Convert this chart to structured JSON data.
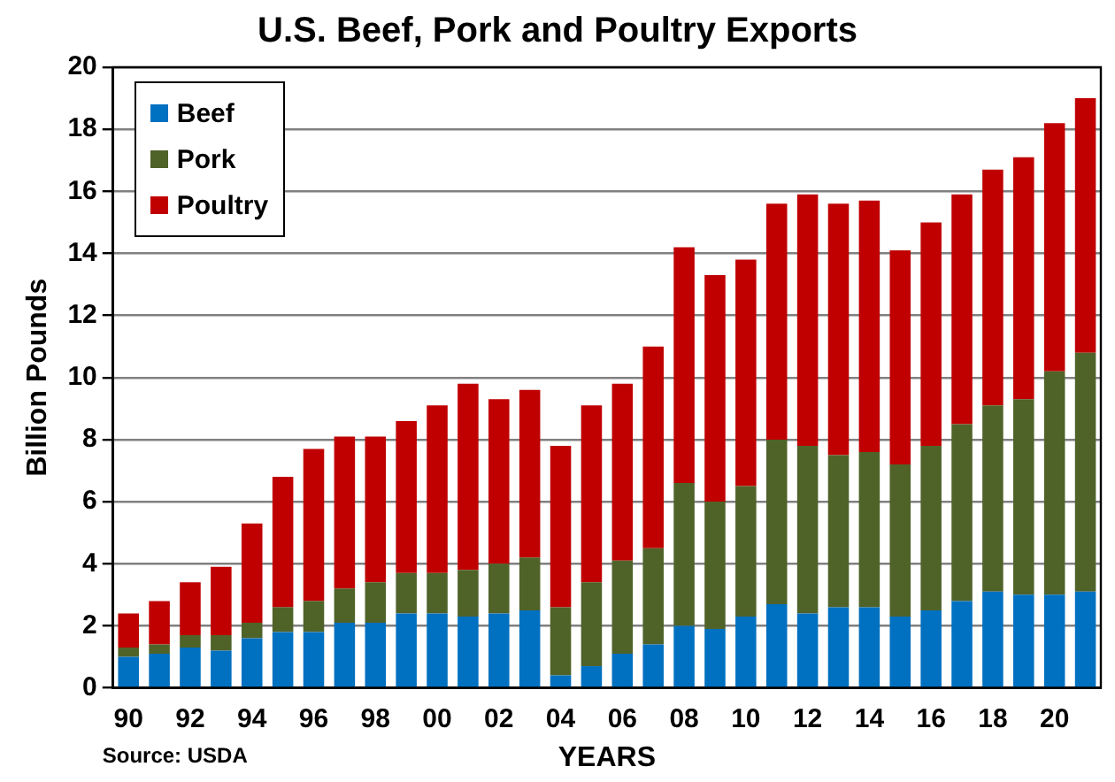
{
  "chart_data": {
    "type": "bar",
    "title": "U.S. Beef, Pork and Poultry Exports",
    "xlabel": "YEARS",
    "ylabel": "Billion Pounds",
    "categories": [
      "90",
      null,
      "92",
      null,
      "94",
      null,
      "96",
      null,
      "98",
      null,
      "00",
      null,
      "02",
      null,
      "04",
      null,
      "06",
      null,
      "08",
      null,
      "10",
      null,
      "12",
      null,
      "14",
      null,
      "16",
      null,
      "18",
      null,
      "20",
      null
    ],
    "stacked": true,
    "series": [
      {
        "name": "Beef",
        "color": "#0070c0",
        "values": [
          1.0,
          1.1,
          1.3,
          1.2,
          1.6,
          1.8,
          1.8,
          2.1,
          2.1,
          2.4,
          2.4,
          2.3,
          2.4,
          2.5,
          0.4,
          0.7,
          1.1,
          1.4,
          2.0,
          1.9,
          2.3,
          2.7,
          2.4,
          2.6,
          2.6,
          2.3,
          2.5,
          2.8,
          3.1,
          3.0,
          3.0,
          3.1
        ]
      },
      {
        "name": "Pork",
        "color": "#4f6228",
        "values": [
          0.3,
          0.3,
          0.4,
          0.5,
          0.5,
          0.8,
          1.0,
          1.1,
          1.3,
          1.3,
          1.3,
          1.5,
          1.6,
          1.7,
          2.2,
          2.7,
          3.0,
          3.1,
          4.6,
          4.1,
          4.2,
          5.3,
          5.4,
          4.9,
          5.0,
          4.9,
          5.3,
          5.7,
          6.0,
          6.3,
          7.2,
          7.7
        ]
      },
      {
        "name": "Poultry",
        "color": "#c00000",
        "values": [
          1.1,
          1.4,
          1.7,
          2.2,
          3.2,
          4.2,
          4.9,
          4.9,
          4.7,
          4.9,
          5.4,
          6.0,
          5.3,
          5.4,
          5.2,
          5.7,
          5.7,
          6.5,
          7.6,
          7.3,
          7.3,
          7.6,
          8.1,
          8.1,
          8.1,
          6.9,
          7.2,
          7.4,
          7.6,
          7.8,
          8.0,
          8.2
        ]
      }
    ],
    "ylim": [
      0,
      20
    ],
    "yticks": [
      0,
      2,
      4,
      6,
      8,
      10,
      12,
      14,
      16,
      18,
      20
    ],
    "grid": "y",
    "legend": "top left",
    "annotations": [
      "Source: USDA"
    ]
  }
}
